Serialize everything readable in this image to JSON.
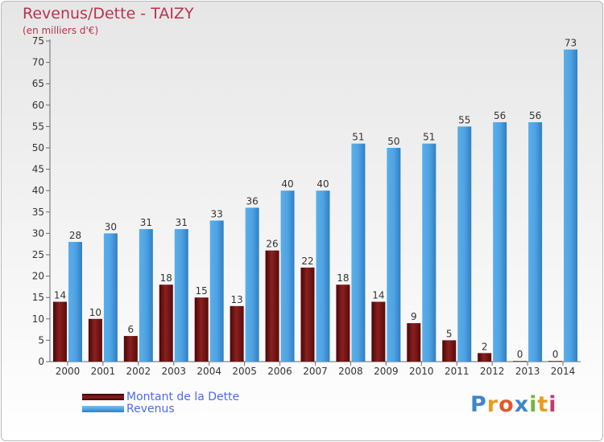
{
  "chart_data": {
    "type": "bar",
    "title": "Revenus/Dette - TAIZY",
    "subtitle": "(en milliers d'€)",
    "categories": [
      "2000",
      "2001",
      "2002",
      "2003",
      "2004",
      "2005",
      "2006",
      "2007",
      "2008",
      "2009",
      "2010",
      "2011",
      "2012",
      "2013",
      "2014"
    ],
    "series": [
      {
        "name": "Montant de la Dette",
        "color": "#7a1414",
        "values": [
          14,
          10,
          6,
          18,
          15,
          13,
          26,
          22,
          18,
          14,
          9,
          5,
          2,
          0,
          0
        ]
      },
      {
        "name": "Revenus",
        "color": "#4fa3e3",
        "values": [
          28,
          30,
          31,
          31,
          33,
          36,
          40,
          40,
          51,
          50,
          51,
          55,
          56,
          56,
          73
        ]
      }
    ],
    "ylim": [
      0,
      75
    ],
    "yticks": [
      0,
      5,
      10,
      15,
      20,
      25,
      30,
      35,
      40,
      45,
      50,
      55,
      60,
      65,
      70,
      75
    ],
    "grid": false,
    "legend_position": "bottom-left"
  },
  "logo_text": "Proxiti",
  "logo_letters": [
    "P",
    "r",
    "o",
    "x",
    "i",
    "t",
    "i"
  ]
}
